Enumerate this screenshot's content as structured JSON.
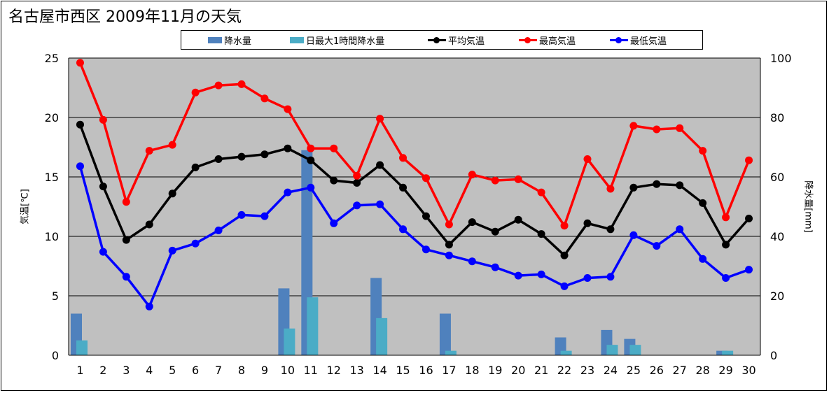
{
  "title": "名古屋市西区  2009年11月の天気",
  "legend": [
    {
      "label": "降水量",
      "color": "#4f81bd",
      "kind": "bar"
    },
    {
      "label": "日最大1時間降水量",
      "color": "#4bacc6",
      "kind": "bar"
    },
    {
      "label": "平均気温",
      "color": "#000000",
      "kind": "line"
    },
    {
      "label": "最高気温",
      "color": "#ff0000",
      "kind": "line"
    },
    {
      "label": "最低気温",
      "color": "#0000ff",
      "kind": "line"
    }
  ],
  "chart_data": {
    "type": "bar+line",
    "categories": [
      "1",
      "2",
      "3",
      "4",
      "5",
      "6",
      "7",
      "8",
      "9",
      "10",
      "11",
      "12",
      "13",
      "14",
      "15",
      "16",
      "17",
      "18",
      "19",
      "20",
      "21",
      "22",
      "23",
      "24",
      "25",
      "26",
      "27",
      "28",
      "29",
      "30"
    ],
    "ylabel_left": "気温[℃]",
    "ylabel_right": "降水量[mm]",
    "ylim_left": [
      0,
      25
    ],
    "ylim_right": [
      0,
      100
    ],
    "yticks_left": [
      0,
      5,
      10,
      15,
      20,
      25
    ],
    "yticks_right": [
      0,
      20,
      40,
      60,
      80,
      100
    ],
    "grid": true,
    "plot_background": "#c0c0c0",
    "legend_position": "top",
    "series": [
      {
        "name": "降水量",
        "type": "bar",
        "axis": "right",
        "color": "#4f81bd",
        "values": [
          14,
          0,
          0,
          0,
          0,
          0,
          0,
          0,
          0,
          22.5,
          69,
          0,
          0,
          26,
          0,
          0,
          14,
          0,
          0,
          0,
          0,
          6,
          0,
          8.5,
          5.5,
          0,
          0,
          0,
          1.5,
          0
        ]
      },
      {
        "name": "日最大1時間降水量",
        "type": "bar",
        "axis": "right",
        "color": "#4bacc6",
        "values": [
          5,
          0,
          0,
          0,
          0,
          0,
          0,
          0,
          0,
          9,
          19.5,
          0,
          0,
          12.5,
          0,
          0,
          1.5,
          0,
          0,
          0,
          0,
          1.5,
          0,
          3.5,
          3.5,
          0,
          0,
          0,
          1.5,
          0
        ]
      },
      {
        "name": "平均気温",
        "type": "line",
        "axis": "left",
        "color": "#000000",
        "values": [
          19.4,
          14.2,
          9.7,
          11.0,
          13.6,
          15.8,
          16.5,
          16.7,
          16.9,
          17.4,
          16.4,
          14.7,
          14.5,
          16.0,
          14.1,
          11.7,
          9.3,
          11.2,
          10.4,
          11.4,
          10.2,
          8.4,
          11.1,
          10.6,
          14.1,
          14.4,
          14.3,
          12.8,
          9.3,
          11.5
        ]
      },
      {
        "name": "最高気温",
        "type": "line",
        "axis": "left",
        "color": "#ff0000",
        "values": [
          24.6,
          19.8,
          12.9,
          17.2,
          17.7,
          22.1,
          22.7,
          22.8,
          21.6,
          20.7,
          17.4,
          17.4,
          15.1,
          19.9,
          16.6,
          14.9,
          11.0,
          15.2,
          14.7,
          14.8,
          13.7,
          10.9,
          16.5,
          14.0,
          19.3,
          19.0,
          19.1,
          17.2,
          11.6,
          16.4
        ]
      },
      {
        "name": "最低気温",
        "type": "line",
        "axis": "left",
        "color": "#0000ff",
        "values": [
          15.9,
          8.7,
          6.6,
          4.1,
          8.8,
          9.4,
          10.5,
          11.8,
          11.7,
          13.7,
          14.1,
          11.1,
          12.6,
          12.7,
          10.6,
          8.9,
          8.4,
          7.9,
          7.4,
          6.7,
          6.8,
          5.8,
          6.5,
          6.6,
          10.1,
          9.2,
          10.6,
          8.1,
          6.5,
          7.2
        ]
      }
    ]
  }
}
